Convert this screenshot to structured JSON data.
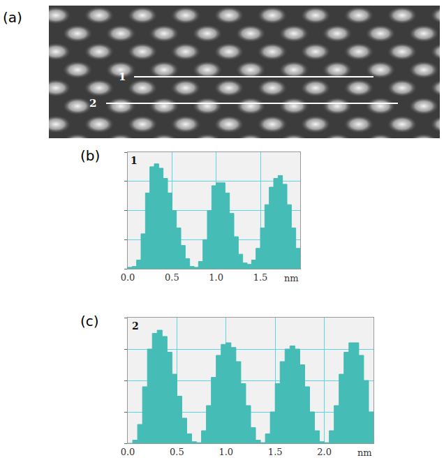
{
  "image": {
    "panel": "(a)",
    "line_labels": [
      "1",
      "2"
    ]
  },
  "chart_data": [
    {
      "type": "area",
      "panel": "(b)",
      "title": "1",
      "xlabel": "nm",
      "color": "#45bcb6",
      "grid": true,
      "tick_labels": "x",
      "x": [
        0,
        0.05,
        0.1,
        0.15,
        0.2,
        0.25,
        0.3,
        0.35,
        0.4,
        0.45,
        0.5,
        0.55,
        0.6,
        0.65,
        0.7,
        0.75,
        0.8,
        0.85,
        0.9,
        0.95,
        1.0,
        1.05,
        1.1,
        1.15,
        1.2,
        1.25,
        1.3,
        1.35,
        1.4,
        1.45,
        1.5,
        1.55,
        1.6,
        1.65,
        1.7,
        1.75,
        1.8,
        1.85,
        1.9,
        1.95
      ],
      "values": [
        0.05,
        0.08,
        0.3,
        1.2,
        2.6,
        3.5,
        3.6,
        3.45,
        3.1,
        2.6,
        2.0,
        1.4,
        0.8,
        0.35,
        0.08,
        0.05,
        0.25,
        1.0,
        2.0,
        2.85,
        2.95,
        2.95,
        2.6,
        1.9,
        1.1,
        0.5,
        0.2,
        0.15,
        0.3,
        0.7,
        1.4,
        2.2,
        2.8,
        3.1,
        3.2,
        2.9,
        2.2,
        1.4,
        0.7,
        0.3
      ],
      "xlim": [
        0,
        1.95
      ],
      "xticks": [
        {
          "value": 0,
          "label": "0.0"
        },
        0.5,
        {
          "value": 1,
          "label": "1.0"
        },
        1.5
      ],
      "ylim": [
        0,
        4
      ],
      "yticks": [
        0,
        1,
        2,
        3,
        4
      ]
    },
    {
      "type": "area",
      "panel": "(c)",
      "title": "2",
      "xlabel": "nm",
      "color": "#45bcb6",
      "grid": true,
      "tick_labels": "x",
      "x": [
        0,
        0.05,
        0.1,
        0.15,
        0.2,
        0.25,
        0.3,
        0.35,
        0.4,
        0.45,
        0.5,
        0.55,
        0.6,
        0.65,
        0.7,
        0.75,
        0.8,
        0.85,
        0.9,
        0.95,
        1.0,
        1.05,
        1.1,
        1.15,
        1.2,
        1.25,
        1.3,
        1.35,
        1.4,
        1.45,
        1.5,
        1.55,
        1.6,
        1.65,
        1.7,
        1.75,
        1.8,
        1.85,
        1.9,
        1.95,
        2.0,
        2.05,
        2.1,
        2.15,
        2.2,
        2.25,
        2.3,
        2.35,
        2.4,
        2.45,
        2.5
      ],
      "values": [
        0.0,
        0.1,
        0.6,
        1.8,
        3.0,
        3.5,
        3.6,
        3.4,
        2.9,
        2.2,
        1.5,
        0.8,
        0.3,
        0.05,
        0.02,
        0.4,
        1.2,
        2.1,
        2.8,
        3.15,
        3.2,
        3.05,
        2.6,
        1.9,
        1.2,
        0.5,
        0.1,
        0.02,
        0.3,
        1.0,
        1.9,
        2.6,
        3.0,
        3.1,
        3.0,
        2.5,
        1.8,
        1.0,
        0.4,
        0.05,
        0.02,
        0.4,
        1.2,
        2.2,
        2.9,
        3.2,
        3.2,
        2.8,
        2.0,
        1.0,
        0.2
      ],
      "xlim": [
        0,
        2.5
      ],
      "xticks": [
        {
          "value": 0,
          "label": "0.0"
        },
        0.5,
        {
          "value": 1,
          "label": "1.0"
        },
        1.5,
        {
          "value": 2,
          "label": "2.0"
        }
      ],
      "ylim": [
        0,
        4
      ],
      "yticks": [
        0,
        1,
        2,
        3,
        4
      ]
    }
  ]
}
